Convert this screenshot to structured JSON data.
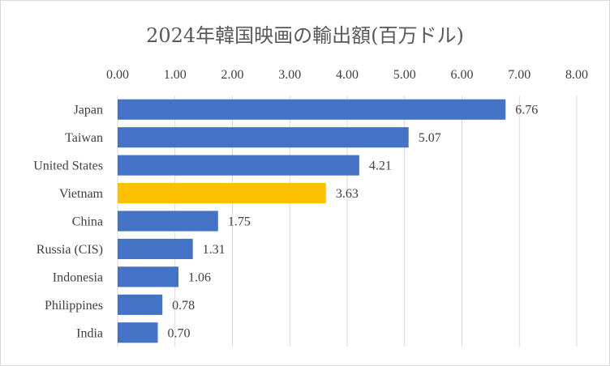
{
  "chart_data": {
    "type": "bar",
    "orientation": "horizontal",
    "title": "2024年韓国映画の輸出額(百万ドル)",
    "xlabel": "",
    "ylabel": "",
    "xlim": [
      0,
      8
    ],
    "x_ticks": [
      "0.00",
      "1.00",
      "2.00",
      "3.00",
      "4.00",
      "5.00",
      "6.00",
      "7.00",
      "8.00"
    ],
    "x_axis_position": "top",
    "grid": true,
    "legend": "none",
    "categories": [
      "Japan",
      "Taiwan",
      "United States",
      "Vietnam",
      "China",
      "Russia (CIS)",
      "Indonesia",
      "Philippines",
      "India"
    ],
    "values": [
      6.76,
      5.07,
      4.21,
      3.63,
      1.75,
      1.31,
      1.06,
      0.78,
      0.7
    ],
    "value_labels": [
      "6.76",
      "5.07",
      "4.21",
      "3.63",
      "1.75",
      "1.31",
      "1.06",
      "0.78",
      "0.70"
    ],
    "colors": [
      "#4472c4",
      "#4472c4",
      "#4472c4",
      "#ffc000",
      "#4472c4",
      "#4472c4",
      "#4472c4",
      "#4472c4",
      "#4472c4"
    ]
  }
}
